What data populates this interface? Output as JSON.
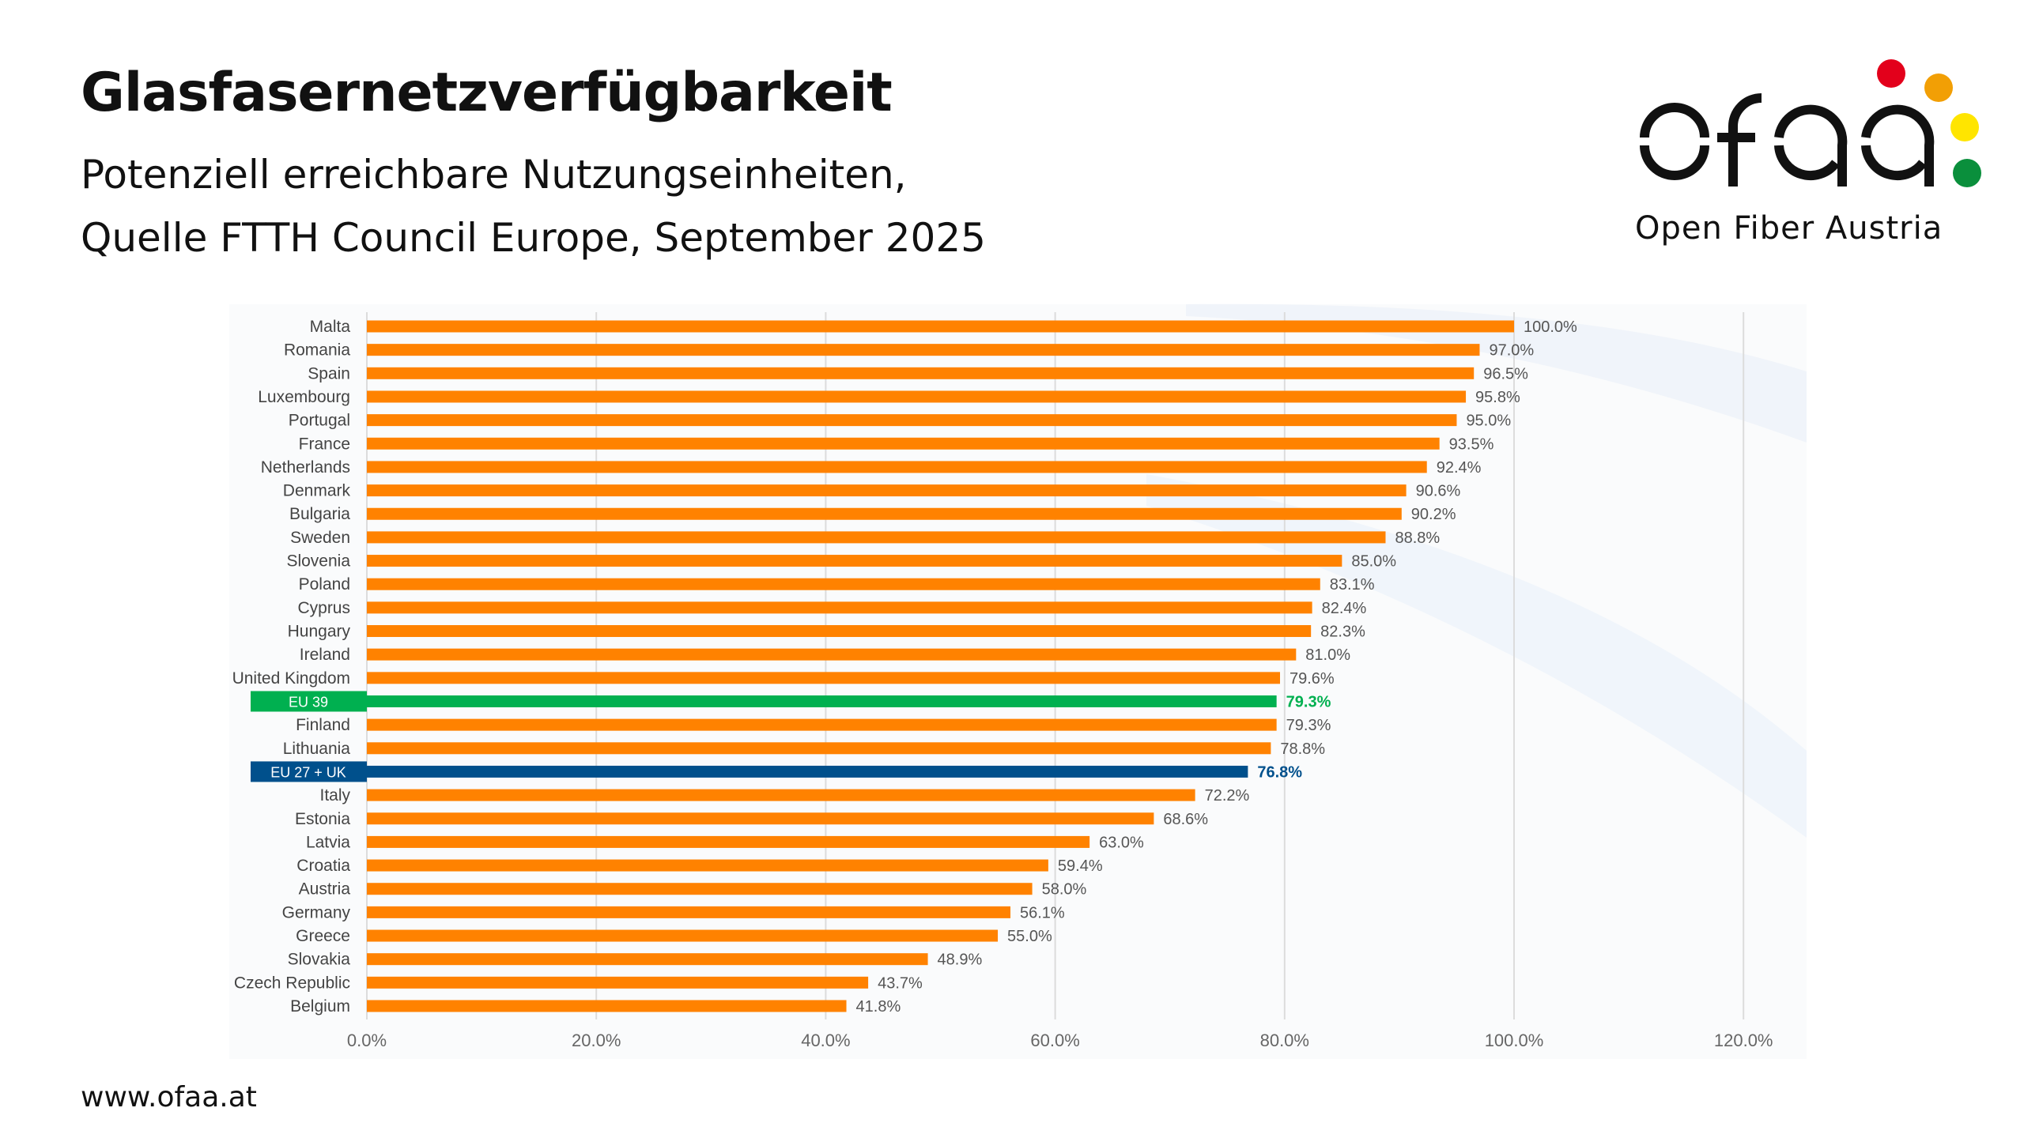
{
  "header": {
    "title": "Glasfasernetzverfügbarkeit",
    "subtitle_line1": "Potenziell erreichbare Nutzungseinheiten,",
    "subtitle_line2": "Quelle FTTH Council Europe, September 2025"
  },
  "logo": {
    "wordmark": "ofaa",
    "tagline": "Open Fiber Austria",
    "dot_colors": [
      "#e3001b",
      "#f29f05",
      "#ffe500",
      "#0a8f3c"
    ]
  },
  "footer": {
    "url": "www.ofaa.at"
  },
  "chart_data": {
    "type": "bar",
    "orientation": "horizontal",
    "title": "",
    "xlabel": "",
    "ylabel": "",
    "xlim": [
      0,
      120
    ],
    "x_ticks": [
      "0.0%",
      "20.0%",
      "40.0%",
      "60.0%",
      "80.0%",
      "100.0%",
      "120.0%"
    ],
    "grid": "vertical",
    "colors": {
      "default": "#ff8200",
      "EU 39": "#00b050",
      "EU 27 + UK": "#00508c"
    },
    "categories": [
      "Malta",
      "Romania",
      "Spain",
      "Luxembourg",
      "Portugal",
      "France",
      "Netherlands",
      "Denmark",
      "Bulgaria",
      "Sweden",
      "Slovenia",
      "Poland",
      "Cyprus",
      "Hungary",
      "Ireland",
      "United Kingdom",
      "EU 39",
      "Finland",
      "Lithuania",
      "EU 27 + UK",
      "Italy",
      "Estonia",
      "Latvia",
      "Croatia",
      "Austria",
      "Germany",
      "Greece",
      "Slovakia",
      "Czech Republic",
      "Belgium"
    ],
    "values": [
      100.0,
      97.0,
      96.5,
      95.8,
      95.0,
      93.5,
      92.4,
      90.6,
      90.2,
      88.8,
      85.0,
      83.1,
      82.4,
      82.3,
      81.0,
      79.6,
      79.3,
      79.3,
      78.8,
      76.8,
      72.2,
      68.6,
      63.0,
      59.4,
      58.0,
      56.1,
      55.0,
      48.9,
      43.7,
      41.8
    ],
    "labels": [
      "100.0%",
      "97.0%",
      "96.5%",
      "95.8%",
      "95.0%",
      "93.5%",
      "92.4%",
      "90.6%",
      "90.2%",
      "88.8%",
      "85.0%",
      "83.1%",
      "82.4%",
      "82.3%",
      "81.0%",
      "79.6%",
      "79.3%",
      "79.3%",
      "78.8%",
      "76.8%",
      "72.2%",
      "68.6%",
      "63.0%",
      "59.4%",
      "58.0%",
      "56.1%",
      "55.0%",
      "48.9%",
      "43.7%",
      "41.8%"
    ]
  }
}
